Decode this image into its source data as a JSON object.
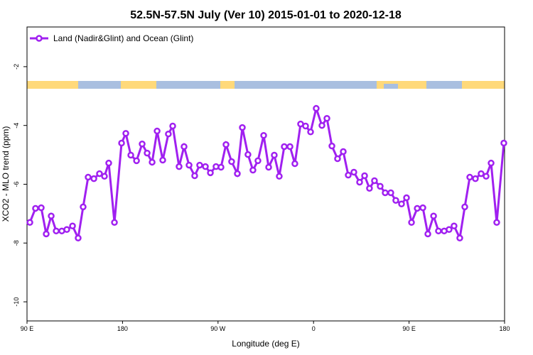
{
  "chart_data": {
    "type": "line",
    "title": "52.5N-57.5N July (Ver 10)   2015-01-01 to 2020-12-18",
    "x_label": "Longitude (deg E)",
    "y_label": "XCO2 - MLO trend (ppm)",
    "xlim": [
      90,
      540
    ],
    "ylim": [
      -10.65,
      -0.65
    ],
    "xticks": [
      {
        "value": 90,
        "label": "90 E"
      },
      180,
      {
        "value": 270,
        "label": "90 W"
      },
      {
        "value": 360,
        "label": "0"
      },
      {
        "value": 450,
        "label": "90 E"
      },
      {
        "value": 540,
        "label": "180"
      }
    ],
    "yticks": [
      -2,
      -4,
      -6,
      -8,
      -10
    ],
    "legend": "top-left",
    "x": [
      92.7,
      98.0,
      103.4,
      108.1,
      112.8,
      117.5,
      122.8,
      127.5,
      132.9,
      138.2,
      142.9,
      147.6,
      153.0,
      158.3,
      163.0,
      167.0,
      172.4,
      179.1,
      183.1,
      187.8,
      193.2,
      198.5,
      203.2,
      207.9,
      212.6,
      217.9,
      223.2,
      227.3,
      233.3,
      238.0,
      242.7,
      248.0,
      252.7,
      258.1,
      262.8,
      268.1,
      272.8,
      277.5,
      282.8,
      288.2,
      292.9,
      298.2,
      302.9,
      307.6,
      313.0,
      317.7,
      323.0,
      327.7,
      332.4,
      337.8,
      342.4,
      347.8,
      352.5,
      357.2,
      362.5,
      367.9,
      372.6,
      377.3,
      382.6,
      388.0,
      392.7,
      398.0,
      403.4,
      408.1,
      412.7,
      417.4,
      422.8,
      427.5,
      432.8,
      437.5,
      442.9,
      447.6,
      452.3,
      457.7,
      463.0,
      467.7,
      473.1,
      477.7,
      483.1,
      487.7,
      492.4,
      497.8,
      502.5,
      507.2,
      512.5,
      517.9,
      522.6,
      527.3,
      532.6,
      539.3
    ],
    "series": [
      {
        "name": "Land (Nadir&Glint) and Ocean (Glint)",
        "color": "#a020f0",
        "values": [
          -7.3,
          -6.82,
          -6.8,
          -7.69,
          -7.08,
          -7.59,
          -7.59,
          -7.54,
          -7.42,
          -7.83,
          -6.77,
          -5.76,
          -5.81,
          -5.64,
          -5.73,
          -5.28,
          -7.3,
          -4.6,
          -4.27,
          -5.01,
          -5.2,
          -4.63,
          -4.94,
          -5.25,
          -4.19,
          -5.18,
          -4.29,
          -4.02,
          -5.4,
          -4.72,
          -5.35,
          -5.71,
          -5.35,
          -5.4,
          -5.61,
          -5.4,
          -5.42,
          -4.65,
          -5.23,
          -5.64,
          -4.07,
          -4.99,
          -5.52,
          -5.2,
          -4.34,
          -5.42,
          -5.01,
          -5.73,
          -4.72,
          -4.72,
          -5.3,
          -3.95,
          -4.02,
          -4.22,
          -3.42,
          -4.0,
          -3.76,
          -4.7,
          -5.13,
          -4.89,
          -5.69,
          -5.59,
          -5.93,
          -5.71,
          -6.14,
          -5.88,
          -6.07,
          -6.29,
          -6.29,
          -6.55,
          -6.67,
          -6.46,
          -7.3,
          -6.82,
          -6.8,
          -7.69,
          -7.08,
          -7.59,
          -7.59,
          -7.54,
          -7.42,
          -7.83,
          -6.77,
          -5.76,
          -5.81,
          -5.64,
          -5.73,
          -5.28,
          -7.3,
          -4.6
        ]
      }
    ]
  }
}
